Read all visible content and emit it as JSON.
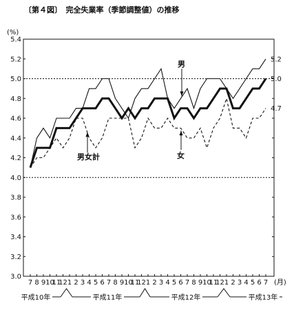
{
  "chart_data": {
    "type": "line",
    "title": "〔第４図〕　完全失業率（季節調整値）の推移",
    "yunit": "(%)",
    "xunit": "(月)",
    "ylim": [
      3.0,
      5.4
    ],
    "yticks": [
      "3.0",
      "3.2",
      "3.4",
      "3.6",
      "3.8",
      "4.0",
      "4.2",
      "4.4",
      "4.6",
      "4.8",
      "5.0",
      "5.2",
      "5.4"
    ],
    "yticks_values": [
      3.0,
      3.2,
      3.4,
      3.6,
      3.8,
      4.0,
      4.2,
      4.4,
      4.6,
      4.8,
      5.0,
      5.2,
      5.4
    ],
    "reference_lines": [
      4.0,
      5.0
    ],
    "months": [
      "7",
      "8",
      "9",
      "10",
      "11",
      "12",
      "1",
      "2",
      "3",
      "4",
      "5",
      "6",
      "7",
      "8",
      "9",
      "10",
      "11",
      "12",
      "1",
      "2",
      "3",
      "4",
      "5",
      "6",
      "7",
      "8",
      "9",
      "10",
      "11",
      "12",
      "1",
      "2",
      "3",
      "4",
      "5",
      "6",
      "7"
    ],
    "years": [
      "平成10年",
      "平成11年",
      "平成12年",
      "平成13年"
    ],
    "series": [
      {
        "name": "男",
        "style": "thin",
        "values": [
          4.1,
          4.4,
          4.5,
          4.4,
          4.6,
          4.6,
          4.6,
          4.7,
          4.7,
          4.9,
          4.9,
          5.0,
          5.0,
          4.8,
          4.7,
          4.6,
          4.8,
          4.9,
          4.9,
          5.0,
          5.1,
          4.8,
          4.7,
          4.8,
          4.9,
          4.7,
          4.9,
          5.0,
          5.0,
          5.0,
          4.9,
          4.8,
          4.9,
          5.0,
          5.1,
          5.1,
          5.2
        ]
      },
      {
        "name": "男女計",
        "style": "bold",
        "values": [
          4.1,
          4.3,
          4.3,
          4.3,
          4.5,
          4.5,
          4.5,
          4.6,
          4.7,
          4.7,
          4.7,
          4.8,
          4.8,
          4.7,
          4.6,
          4.7,
          4.6,
          4.7,
          4.7,
          4.8,
          4.8,
          4.8,
          4.6,
          4.7,
          4.7,
          4.6,
          4.7,
          4.7,
          4.8,
          4.9,
          4.9,
          4.7,
          4.7,
          4.8,
          4.9,
          4.9,
          5.0
        ]
      },
      {
        "name": "女",
        "style": "dashed",
        "values": [
          4.1,
          4.2,
          4.2,
          4.3,
          4.4,
          4.3,
          4.4,
          4.6,
          4.6,
          4.4,
          4.3,
          4.4,
          4.6,
          4.6,
          4.6,
          4.6,
          4.3,
          4.4,
          4.6,
          4.5,
          4.5,
          4.6,
          4.5,
          4.5,
          4.4,
          4.4,
          4.5,
          4.3,
          4.5,
          4.6,
          4.8,
          4.5,
          4.5,
          4.4,
          4.6,
          4.6,
          4.7
        ]
      }
    ],
    "end_labels": [
      "5.2",
      "5.0",
      "4.7"
    ],
    "annotations": [
      "男",
      "男女計",
      "女"
    ]
  }
}
